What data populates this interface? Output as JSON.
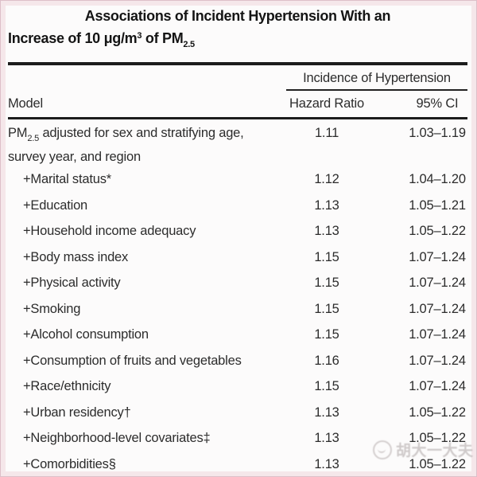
{
  "colors": {
    "frame_pink": "#f5e7ea",
    "frame_edge": "#ddbfc9",
    "rule_black": "#1c1c1c",
    "text": "#2c2c2c",
    "background": "#fcfbfb",
    "watermark_gray": "#aaa2a2"
  },
  "title": {
    "line1": "Associations of Incident Hypertension With an",
    "line2_parts": [
      {
        "t": "Increase of 10 μg/m"
      },
      {
        "t": "3",
        "sup": true
      },
      {
        "t": " of PM"
      },
      {
        "t": "2.5",
        "sub": true
      }
    ]
  },
  "table": {
    "spanner_header": "Incidence of Hypertension",
    "columns": {
      "model": "Model",
      "hazard_ratio": "Hazard Ratio",
      "ci": "95% CI"
    },
    "rows": [
      {
        "label_parts": [
          {
            "t": "PM"
          },
          {
            "t": "2.5",
            "sub": true
          },
          {
            "t": " adjusted for sex and stratifying age, survey year, and region"
          }
        ],
        "hazard_ratio": "1.11",
        "ci": "1.03–1.19",
        "indent": false,
        "twoline": true
      },
      {
        "label_parts": [
          {
            "t": "+Marital status*"
          }
        ],
        "hazard_ratio": "1.12",
        "ci": "1.04–1.20",
        "indent": true
      },
      {
        "label_parts": [
          {
            "t": "+Education"
          }
        ],
        "hazard_ratio": "1.13",
        "ci": "1.05–1.21",
        "indent": true
      },
      {
        "label_parts": [
          {
            "t": "+Household income adequacy"
          }
        ],
        "hazard_ratio": "1.13",
        "ci": "1.05–1.22",
        "indent": true
      },
      {
        "label_parts": [
          {
            "t": "+Body mass index"
          }
        ],
        "hazard_ratio": "1.15",
        "ci": "1.07–1.24",
        "indent": true
      },
      {
        "label_parts": [
          {
            "t": "+Physical activity"
          }
        ],
        "hazard_ratio": "1.15",
        "ci": "1.07–1.24",
        "indent": true
      },
      {
        "label_parts": [
          {
            "t": "+Smoking"
          }
        ],
        "hazard_ratio": "1.15",
        "ci": "1.07–1.24",
        "indent": true
      },
      {
        "label_parts": [
          {
            "t": "+Alcohol consumption"
          }
        ],
        "hazard_ratio": "1.15",
        "ci": "1.07–1.24",
        "indent": true
      },
      {
        "label_parts": [
          {
            "t": "+Consumption of fruits and vegetables"
          }
        ],
        "hazard_ratio": "1.16",
        "ci": "1.07–1.24",
        "indent": true
      },
      {
        "label_parts": [
          {
            "t": "+Race/ethnicity"
          }
        ],
        "hazard_ratio": "1.15",
        "ci": "1.07–1.24",
        "indent": true
      },
      {
        "label_parts": [
          {
            "t": "+Urban residency†"
          }
        ],
        "hazard_ratio": "1.13",
        "ci": "1.05–1.22",
        "indent": true
      },
      {
        "label_parts": [
          {
            "t": "+Neighborhood-level covariates‡"
          }
        ],
        "hazard_ratio": "1.13",
        "ci": "1.05–1.22",
        "indent": true
      },
      {
        "label_parts": [
          {
            "t": "+Comorbidities§"
          }
        ],
        "hazard_ratio": "1.13",
        "ci": "1.05–1.22",
        "indent": true
      }
    ]
  },
  "watermark": {
    "icon": "circle-logo-icon",
    "text": "胡大一大夫"
  },
  "chart_data": {
    "type": "table",
    "title": "Associations of Incident Hypertension With an Increase of 10 μg/m3 of PM2.5",
    "columns": [
      "Model",
      "Hazard Ratio",
      "95% CI"
    ],
    "rows": [
      [
        "PM2.5 adjusted for sex and stratifying age, survey year, and region",
        "1.11",
        "1.03–1.19"
      ],
      [
        "+Marital status*",
        "1.12",
        "1.04–1.20"
      ],
      [
        "+Education",
        "1.13",
        "1.05–1.21"
      ],
      [
        "+Household income adequacy",
        "1.13",
        "1.05–1.22"
      ],
      [
        "+Body mass index",
        "1.15",
        "1.07–1.24"
      ],
      [
        "+Physical activity",
        "1.15",
        "1.07–1.24"
      ],
      [
        "+Smoking",
        "1.15",
        "1.07–1.24"
      ],
      [
        "+Alcohol consumption",
        "1.15",
        "1.07–1.24"
      ],
      [
        "+Consumption of fruits and vegetables",
        "1.16",
        "1.07–1.24"
      ],
      [
        "+Race/ethnicity",
        "1.15",
        "1.07–1.24"
      ],
      [
        "+Urban residency†",
        "1.13",
        "1.05–1.22"
      ],
      [
        "+Neighborhood-level covariates‡",
        "1.13",
        "1.05–1.22"
      ],
      [
        "+Comorbidities§",
        "1.13",
        "1.05–1.22"
      ]
    ]
  }
}
